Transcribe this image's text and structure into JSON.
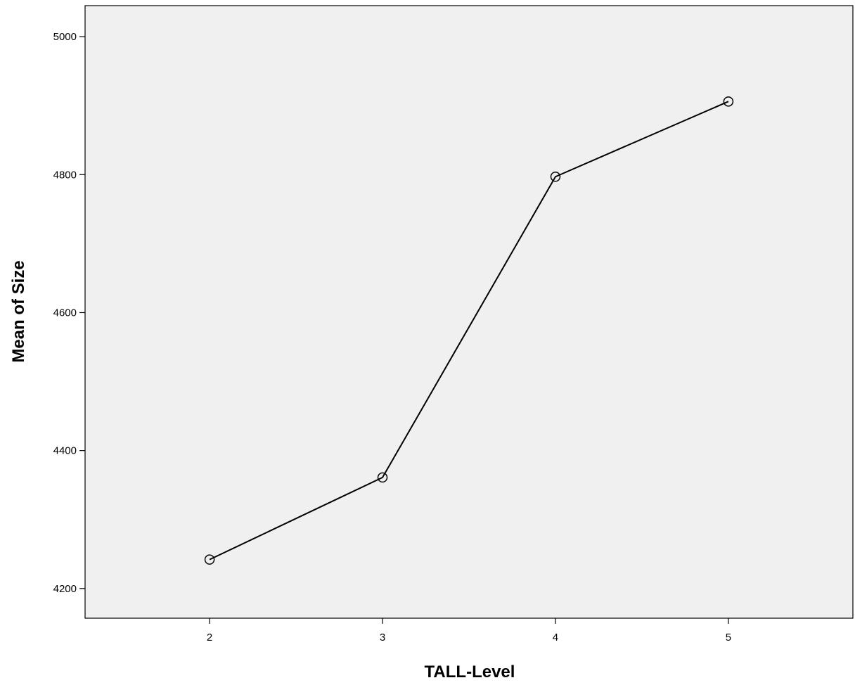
{
  "chart_data": {
    "type": "line",
    "title": "",
    "xlabel": "TALL-Level",
    "ylabel": "Mean of Size",
    "x": [
      2,
      3,
      4,
      5
    ],
    "series": [
      {
        "values": [
          4242,
          4361,
          4797,
          4906
        ],
        "marker": "open-circle"
      }
    ],
    "xlim": [
      1.28,
      5.72
    ],
    "ylim": [
      4157,
      5045
    ],
    "xticks": [
      "2",
      "3",
      "4",
      "5"
    ],
    "yticks": [
      "4200",
      "4400",
      "4600",
      "4800",
      "5000"
    ],
    "grid": false,
    "legend": "none"
  },
  "colors": {
    "plot_background": "#f0f0f0",
    "line": "#000000",
    "axis": "#000000"
  }
}
